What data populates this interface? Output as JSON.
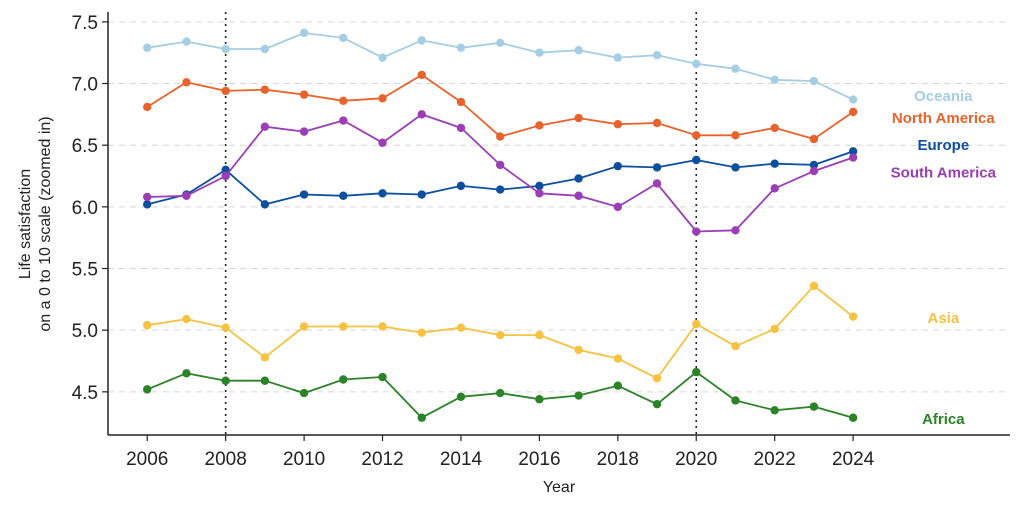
{
  "chart_data": {
    "type": "line",
    "xlabel": "Year",
    "ylabel_line1": "Life satisfaction",
    "ylabel_line2": "on a 0 to 10 scale (zoomed in)",
    "xlim": [
      2005,
      2028
    ],
    "ylim": [
      4.15,
      7.58
    ],
    "x_ticks": [
      2006,
      2008,
      2010,
      2012,
      2014,
      2016,
      2018,
      2020,
      2022,
      2024
    ],
    "x_tick_labels": [
      "2006",
      "2008",
      "2010",
      "2012",
      "2014",
      "2016",
      "2018",
      "2020",
      "2022",
      "2024"
    ],
    "y_ticks": [
      4.5,
      5.0,
      5.5,
      6.0,
      6.5,
      7.0,
      7.5
    ],
    "y_tick_labels": [
      "4.5",
      "5.0",
      "5.5",
      "6.0",
      "6.5",
      "7.0",
      "7.5"
    ],
    "grid": "horizontal dashed",
    "reference_lines_x": [
      2008,
      2020
    ],
    "x": [
      2006,
      2007,
      2008,
      2009,
      2010,
      2011,
      2012,
      2013,
      2014,
      2015,
      2016,
      2017,
      2018,
      2019,
      2020,
      2021,
      2022,
      2023,
      2024
    ],
    "series": [
      {
        "name": "Oceania",
        "color": "#a6cee3",
        "label_y": 6.9,
        "values": [
          7.29,
          7.34,
          7.28,
          7.28,
          7.41,
          7.37,
          7.21,
          7.35,
          7.29,
          7.33,
          7.25,
          7.27,
          7.21,
          7.23,
          7.16,
          7.12,
          7.03,
          7.02,
          6.87
        ]
      },
      {
        "name": "North America",
        "color": "#e8632b",
        "label_y": 6.72,
        "values": [
          6.81,
          7.01,
          6.94,
          6.95,
          6.91,
          6.86,
          6.88,
          7.07,
          6.85,
          6.57,
          6.66,
          6.72,
          6.67,
          6.68,
          6.58,
          6.58,
          6.64,
          6.55,
          6.77
        ]
      },
      {
        "name": "Europe",
        "color": "#0b4f9e",
        "label_y": 6.5,
        "values": [
          6.02,
          6.1,
          6.3,
          6.02,
          6.1,
          6.09,
          6.11,
          6.1,
          6.17,
          6.14,
          6.17,
          6.23,
          6.33,
          6.32,
          6.38,
          6.32,
          6.35,
          6.34,
          6.45
        ]
      },
      {
        "name": "South America",
        "color": "#9b3db5",
        "label_y": 6.28,
        "values": [
          6.08,
          6.09,
          6.25,
          6.65,
          6.61,
          6.7,
          6.52,
          6.75,
          6.64,
          6.34,
          6.11,
          6.09,
          6.0,
          6.19,
          5.8,
          5.81,
          6.15,
          6.29,
          6.4
        ]
      },
      {
        "name": "Asia",
        "color": "#f5c242",
        "label_y": 5.1,
        "values": [
          5.04,
          5.09,
          5.02,
          4.78,
          5.03,
          5.03,
          5.03,
          4.98,
          5.02,
          4.96,
          4.96,
          4.84,
          4.77,
          4.61,
          5.05,
          4.87,
          5.01,
          5.36,
          5.11
        ]
      },
      {
        "name": "Africa",
        "color": "#2b8327",
        "label_y": 4.28,
        "values": [
          4.52,
          4.65,
          4.59,
          4.59,
          4.49,
          4.6,
          4.62,
          4.29,
          4.46,
          4.49,
          4.44,
          4.47,
          4.55,
          4.4,
          4.66,
          4.43,
          4.35,
          4.38,
          4.29
        ]
      }
    ]
  }
}
